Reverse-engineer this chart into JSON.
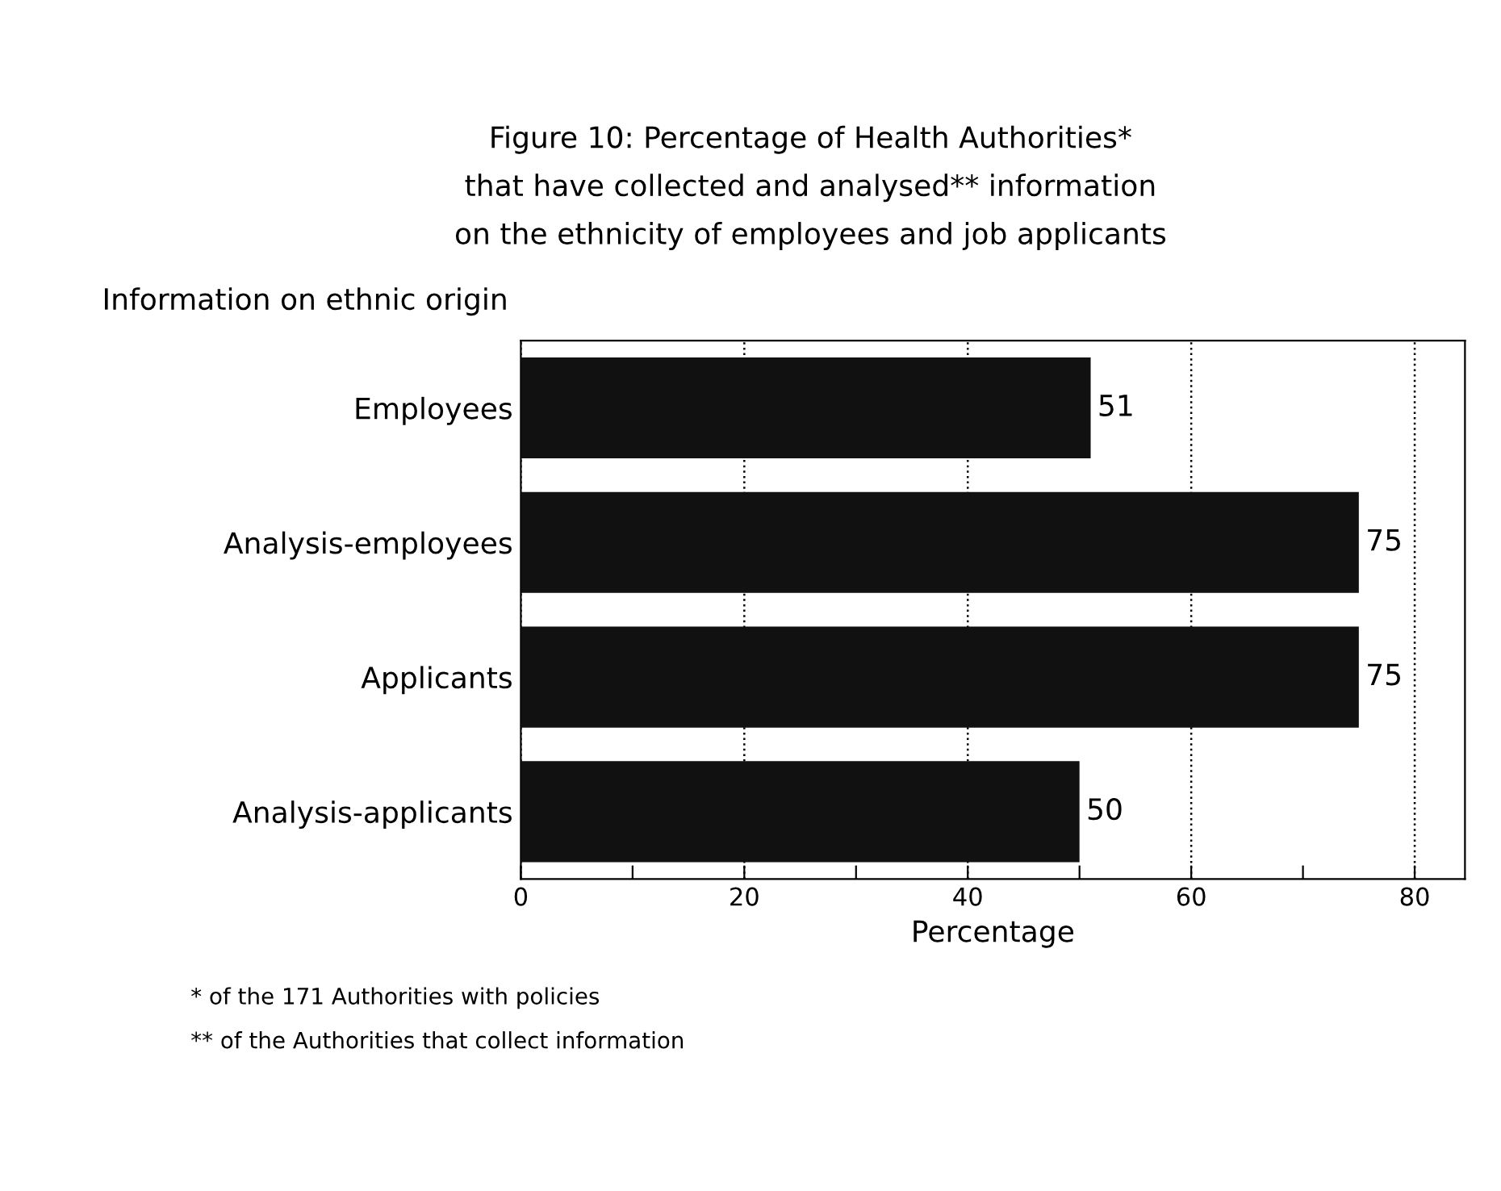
{
  "chart_data": {
    "type": "bar",
    "orientation": "horizontal",
    "title": "Figure 10: Percentage of Health Authorities*\nthat have collected and analysed** information\non the ethnicity of employees and job applicants",
    "ylabel": "Information on ethnic origin",
    "xlabel": "Percentage",
    "categories": [
      "Employees",
      "Analysis-employees",
      "Applicants",
      "Analysis-applicants"
    ],
    "values": [
      51,
      75,
      75,
      50
    ],
    "color": "#111111",
    "xlim": [
      0,
      84.5
    ],
    "xticks": [
      0,
      {
        "value": 10,
        "label": null
      },
      20,
      {
        "value": 30,
        "label": null
      },
      40,
      {
        "value": 50,
        "label": null
      },
      60,
      {
        "value": 70,
        "label": null
      },
      80
    ],
    "grid": "x",
    "data_labels": true,
    "annotations": [
      "* of the 171 Authorities with policies",
      "** of the Authorities that collect information"
    ]
  }
}
